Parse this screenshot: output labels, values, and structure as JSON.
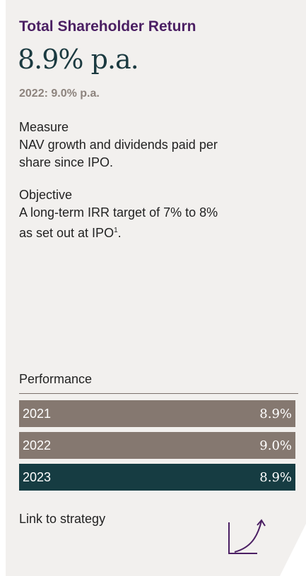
{
  "header": {
    "title": "Total Shareholder Return",
    "headline": "8.9% p.a.",
    "prior": "2022: 9.0% p.a."
  },
  "measure": {
    "label": "Measure",
    "lines": [
      "NAV growth and dividends paid per",
      "share since IPO."
    ]
  },
  "objective": {
    "label": "Objective",
    "lines": [
      "A long-term IRR target of 7% to 8%",
      "as set out at IPO"
    ],
    "footnote": "1",
    "end": "."
  },
  "performance": {
    "label": "Performance",
    "rows": [
      [
        "2021",
        "8.9%"
      ],
      [
        "2022",
        "9.0%"
      ],
      [
        "2023",
        "8.9%"
      ]
    ]
  },
  "link": {
    "label": "Link to strategy"
  }
}
